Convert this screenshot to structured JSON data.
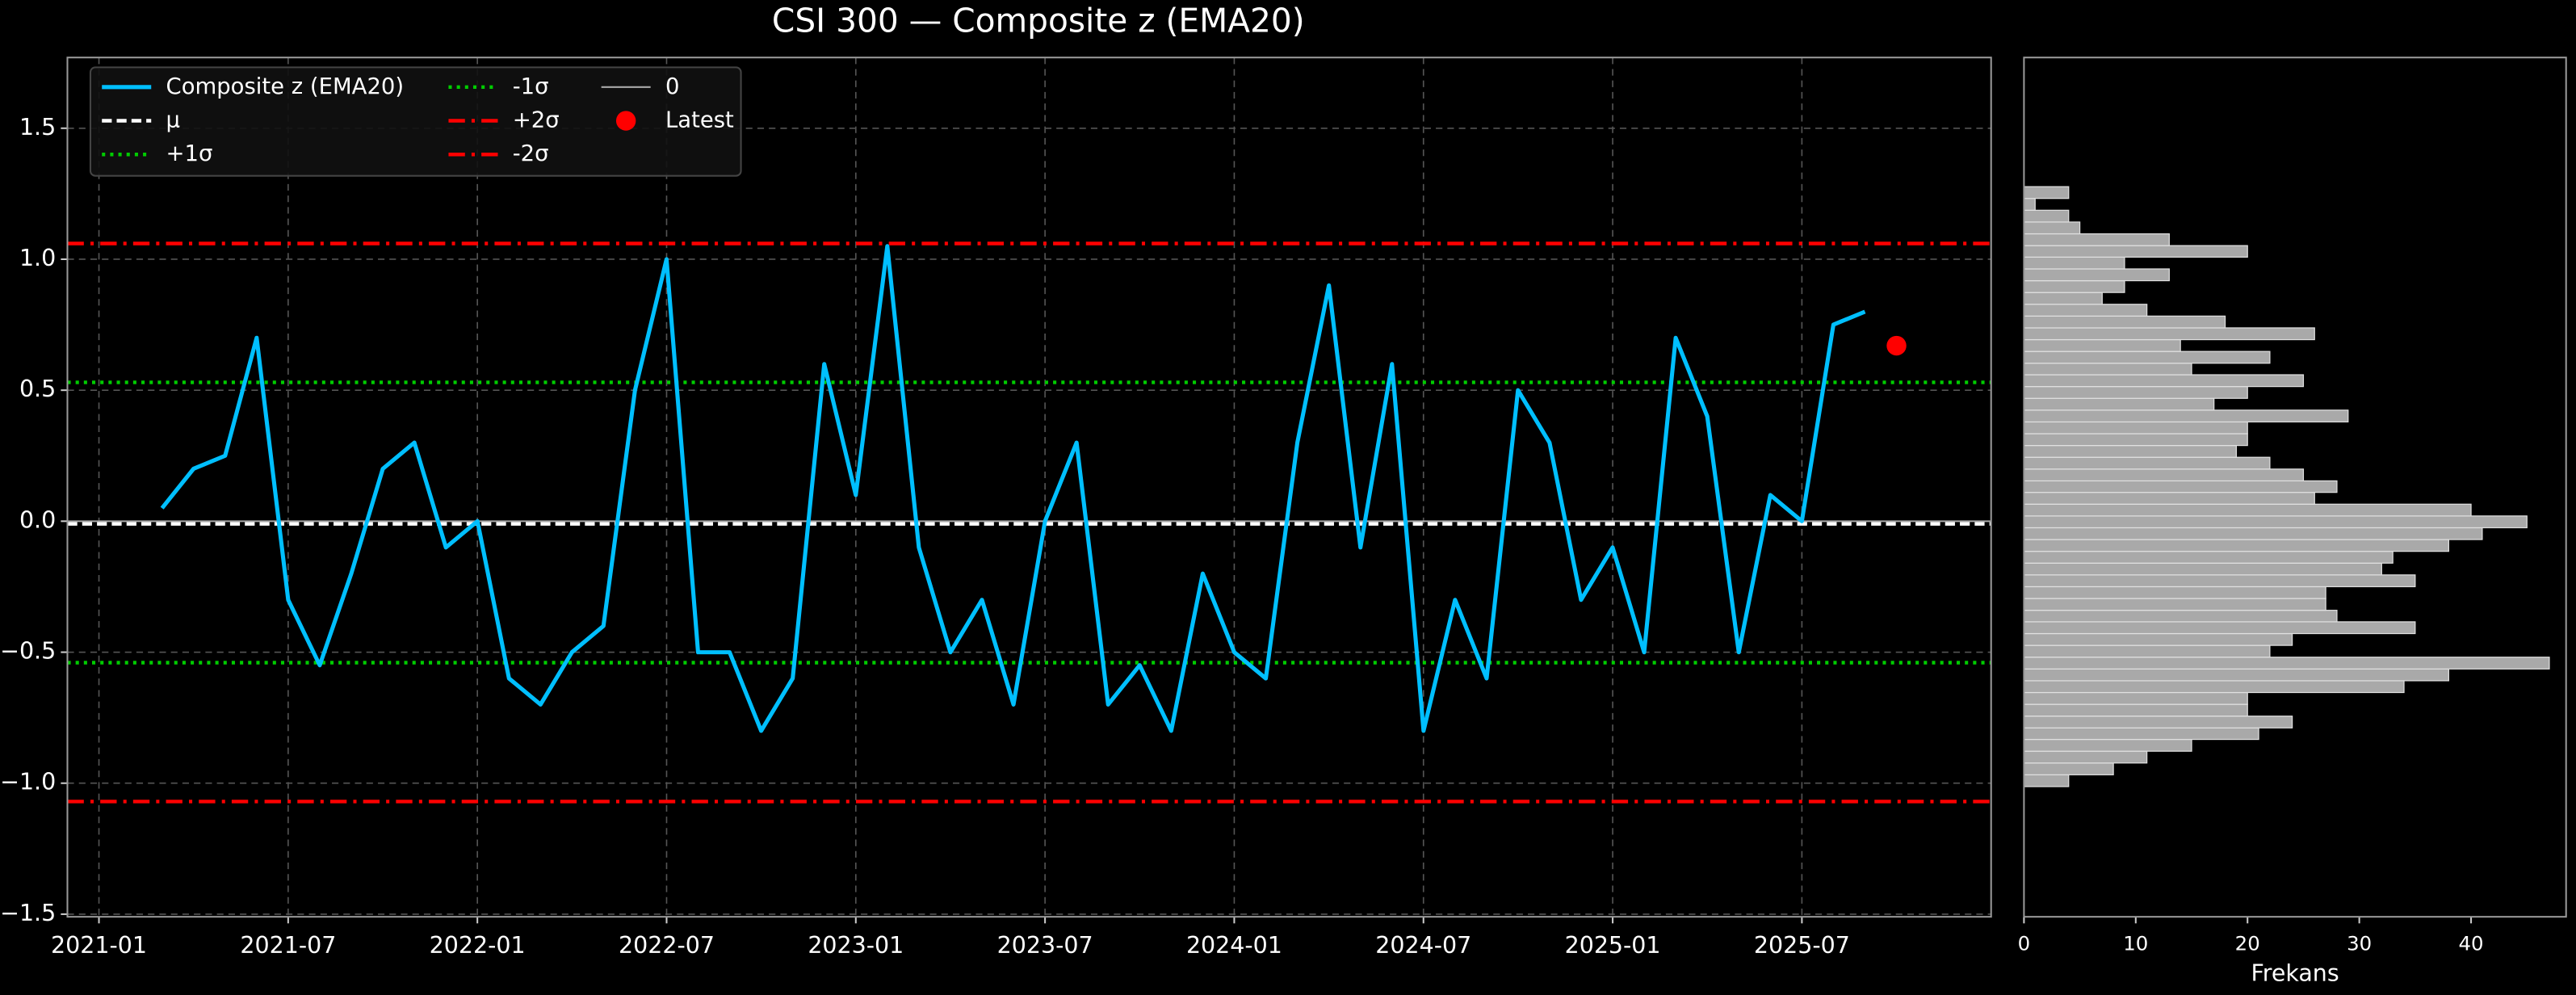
{
  "chart_data": [
    {
      "type": "line",
      "title": "CSI 300 — Composite z (EMA20)",
      "x": [
        "2021-03",
        "2021-04",
        "2021-05",
        "2021-06",
        "2021-07",
        "2021-08",
        "2021-09",
        "2021-10",
        "2021-11",
        "2021-12",
        "2022-01",
        "2022-02",
        "2022-03",
        "2022-04",
        "2022-05",
        "2022-06",
        "2022-07",
        "2022-08",
        "2022-09",
        "2022-10",
        "2022-11",
        "2022-12",
        "2023-01",
        "2023-02",
        "2023-03",
        "2023-04",
        "2023-05",
        "2023-06",
        "2023-07",
        "2023-08",
        "2023-09",
        "2023-10",
        "2023-11",
        "2023-12",
        "2024-01",
        "2024-02",
        "2024-03",
        "2024-04",
        "2024-05",
        "2024-06",
        "2024-07",
        "2024-08",
        "2024-09",
        "2024-10",
        "2024-11",
        "2024-12",
        "2025-01",
        "2025-02",
        "2025-03",
        "2025-04",
        "2025-05",
        "2025-06",
        "2025-07",
        "2025-08",
        "2025-09"
      ],
      "series": [
        {
          "name": "Composite z (EMA20)",
          "color": "#00bfff",
          "values": [
            0.05,
            0.2,
            0.25,
            0.7,
            -0.3,
            -0.55,
            -0.2,
            0.2,
            0.3,
            -0.1,
            0.0,
            -0.6,
            -0.7,
            -0.5,
            -0.4,
            0.5,
            1.0,
            -0.5,
            -0.5,
            -0.8,
            -0.6,
            0.6,
            0.1,
            1.05,
            -0.1,
            -0.5,
            -0.3,
            -0.7,
            0.0,
            0.3,
            -0.7,
            -0.55,
            -0.8,
            -0.2,
            -0.5,
            -0.6,
            0.3,
            0.9,
            -0.1,
            0.6,
            -0.8,
            -0.3,
            -0.6,
            0.5,
            0.3,
            -0.3,
            -0.1,
            -0.5,
            0.7,
            0.4,
            -0.5,
            0.1,
            0.0,
            0.75,
            0.8
          ]
        }
      ],
      "hlines": [
        {
          "name": "μ",
          "value": -0.01,
          "color": "#ffffff",
          "style": "dashed"
        },
        {
          "name": "+1σ",
          "value": 0.53,
          "color": "#00cc00",
          "style": "dotted"
        },
        {
          "name": "-1σ",
          "value": -0.54,
          "color": "#00cc00",
          "style": "dotted"
        },
        {
          "name": "+2σ",
          "value": 1.06,
          "color": "#ff0000",
          "style": "dashdot"
        },
        {
          "name": "-2σ",
          "value": -1.07,
          "color": "#ff0000",
          "style": "dashdot"
        },
        {
          "name": "0",
          "value": 0,
          "color": "#aaaaaa",
          "style": "solid"
        }
      ],
      "marker": {
        "name": "Latest",
        "x": "2025-10",
        "y": 0.67,
        "color": "#ff0000"
      },
      "xlim": [
        "2020-12",
        "2026-01"
      ],
      "xticks": [
        "2021-01",
        "2021-07",
        "2022-01",
        "2022-07",
        "2023-01",
        "2023-07",
        "2024-01",
        "2024-07",
        "2025-01",
        "2025-07"
      ],
      "ylim": [
        -1.51,
        1.77
      ],
      "yticks": [
        {
          "value": -1.5,
          "label": "−1.5"
        },
        {
          "value": -1.0,
          "label": "−1.0"
        },
        {
          "value": -0.5,
          "label": "−0.5"
        },
        {
          "value": 0.0,
          "label": "0.0"
        },
        {
          "value": 0.5,
          "label": "0.5"
        },
        {
          "value": 1.0,
          "label": "1.0"
        },
        {
          "value": 1.5,
          "label": "1.5"
        }
      ],
      "grid": true,
      "legend": "upper left"
    },
    {
      "type": "histogram",
      "orientation": "horizontal",
      "xlabel": "Frekans",
      "color": "#a9a9a9",
      "edgecolor": "#e0e0e0",
      "bins": [
        -1.013,
        -0.968,
        -0.923,
        -0.878,
        -0.833,
        -0.789,
        -0.744,
        -0.699,
        -0.654,
        -0.609,
        -0.564,
        -0.519,
        -0.474,
        -0.429,
        -0.384,
        -0.34,
        -0.295,
        -0.25,
        -0.205,
        -0.16,
        -0.115,
        -0.07,
        -0.025,
        0.02,
        0.065,
        0.11,
        0.154,
        0.199,
        0.244,
        0.289,
        0.334,
        0.379,
        0.424,
        0.469,
        0.514,
        0.559,
        0.603,
        0.648,
        0.693,
        0.738,
        0.783,
        0.828,
        0.873,
        0.918,
        0.963,
        1.008,
        1.052,
        1.097,
        1.142,
        1.187,
        1.232,
        1.277
      ],
      "counts": [
        4,
        8,
        11,
        15,
        21,
        24,
        20,
        20,
        34,
        38,
        47,
        22,
        24,
        35,
        28,
        27,
        27,
        35,
        32,
        33,
        38,
        41,
        45,
        40,
        26,
        28,
        25,
        22,
        19,
        20,
        20,
        29,
        17,
        20,
        25,
        15,
        22,
        14,
        26,
        18,
        11,
        7,
        9,
        13,
        9,
        20,
        13,
        5,
        4,
        1,
        4
      ],
      "xlim": [
        0,
        48.5
      ],
      "xticks": [
        0,
        10,
        20,
        30,
        40
      ],
      "ylim": [
        -1.51,
        1.77
      ]
    }
  ]
}
